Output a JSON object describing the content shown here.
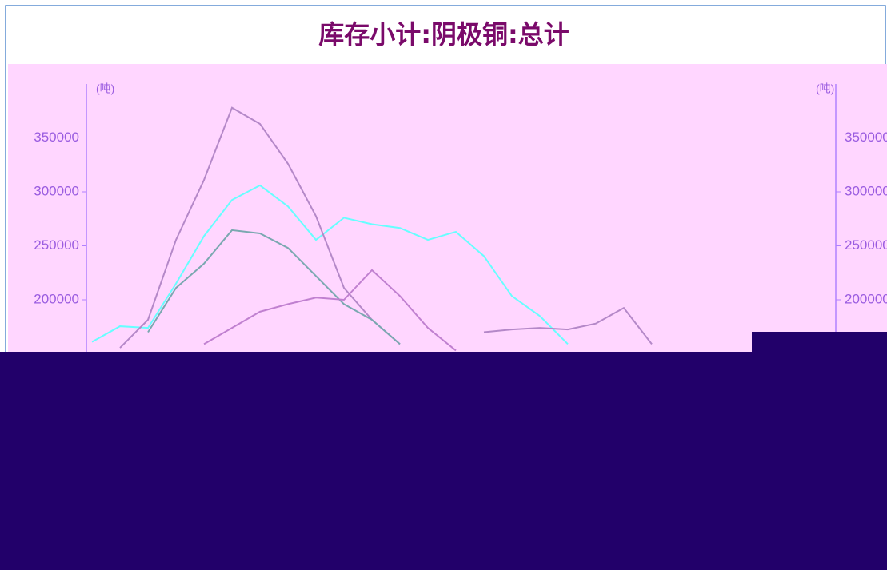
{
  "chart_data": {
    "type": "line",
    "title": "库存小计:阴极铜:总计",
    "y_label": "(吨)",
    "y2_label": "(吨)",
    "categories": [
      null,
      null,
      null,
      null,
      null,
      null,
      null,
      null,
      null,
      null,
      null,
      null,
      null,
      null,
      null,
      null,
      null,
      null,
      null,
      null,
      null,
      null,
      null,
      null,
      null
    ],
    "ylim": [
      0,
      400000
    ],
    "yticks": [
      200000,
      250000,
      300000,
      350000
    ],
    "y2lim": [
      0,
      400000
    ],
    "y2ticks": [
      200000,
      250000,
      300000,
      350000
    ],
    "series": [
      {
        "color": "#66ffff",
        "values": [
          161000,
          175500,
          174000,
          215000,
          259000,
          292500,
          306000,
          286500,
          255500,
          276000,
          270000,
          266500,
          255500,
          263000,
          240500,
          203500,
          185000,
          159000,
          null,
          null,
          null,
          null,
          null,
          null,
          null
        ]
      },
      {
        "color": "#b488c8",
        "values": [
          null,
          155500,
          181500,
          255500,
          311000,
          378000,
          363000,
          326000,
          277500,
          211000,
          181500,
          159000,
          null,
          null,
          170000,
          172500,
          174000,
          172500,
          178000,
          192500,
          159000,
          null,
          null,
          null,
          null
        ]
      },
      {
        "color": "#7aa8b0",
        "values": [
          null,
          null,
          170000,
          211000,
          233500,
          264500,
          261500,
          248000,
          222000,
          196000,
          181500,
          159000,
          null,
          null,
          null,
          null,
          null,
          null,
          null,
          null,
          null,
          null,
          null,
          null,
          null
        ]
      },
      {
        "color": "#c080d0",
        "values": [
          null,
          null,
          null,
          null,
          159000,
          174000,
          189000,
          196000,
          202000,
          200000,
          227500,
          203500,
          174000,
          153000,
          null,
          null,
          null,
          null,
          null,
          null,
          null,
          null,
          null,
          null,
          null
        ]
      }
    ]
  }
}
